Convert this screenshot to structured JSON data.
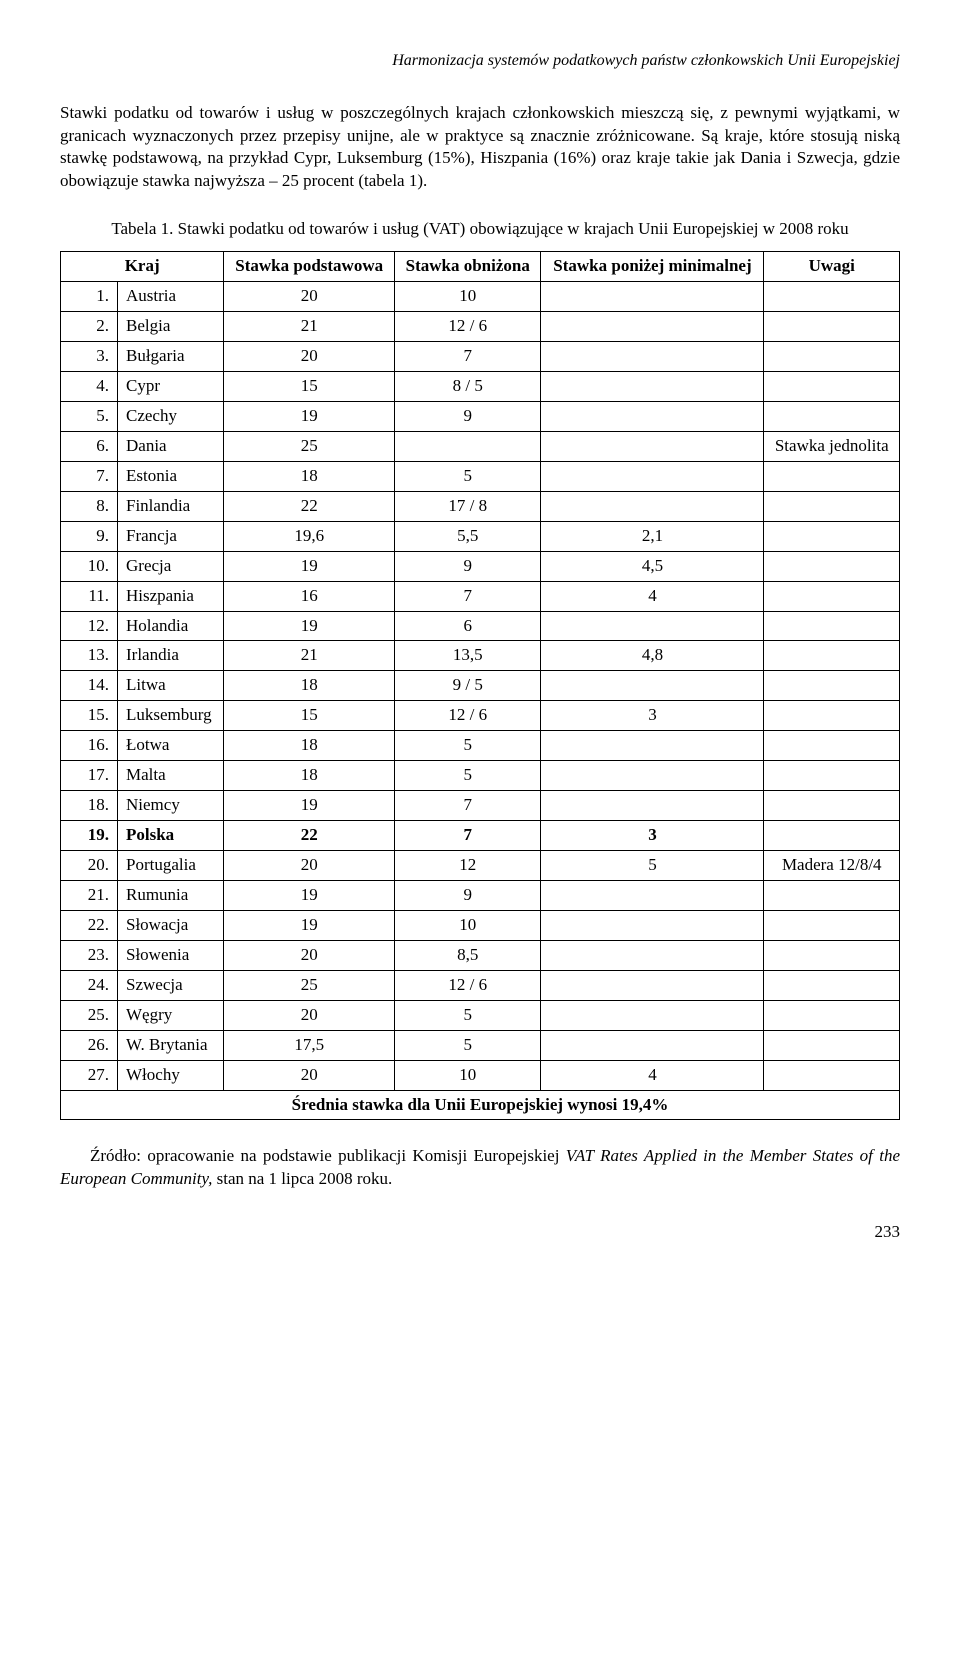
{
  "header": {
    "running_title": "Harmonizacja systemów podatkowych państw członkowskich Unii Europejskiej"
  },
  "paragraph": "Stawki podatku od towarów i usług w poszczególnych krajach członkowskich mieszczą się, z pewnymi wyjątkami, w granicach wyznaczonych przez przepisy unijne, ale w praktyce są znacznie zróżnicowane. Są kraje, które stosują niską stawkę podstawową, na przykład Cypr, Luksemburg (15%), Hiszpania (16%) oraz kraje takie jak Dania i Szwecja, gdzie obowiązuje stawka najwyższa – 25 procent (tabela 1).",
  "table": {
    "caption": "Tabela 1. Stawki podatku od towarów i usług (VAT) obowiązujące w krajach Unii Europejskiej w 2008 roku",
    "headers": {
      "country": "Kraj",
      "basic": "Stawka podstawowa",
      "reduced": "Stawka obniżona",
      "below_min": "Stawka poniżej minimalnej",
      "notes": "Uwagi"
    },
    "rows": [
      {
        "n": "1.",
        "country": "Austria",
        "basic": "20",
        "reduced": "10",
        "below": "",
        "notes": "",
        "bold": false
      },
      {
        "n": "2.",
        "country": "Belgia",
        "basic": "21",
        "reduced": "12 / 6",
        "below": "",
        "notes": "",
        "bold": false
      },
      {
        "n": "3.",
        "country": "Bułgaria",
        "basic": "20",
        "reduced": "7",
        "below": "",
        "notes": "",
        "bold": false
      },
      {
        "n": "4.",
        "country": "Cypr",
        "basic": "15",
        "reduced": "8 / 5",
        "below": "",
        "notes": "",
        "bold": false
      },
      {
        "n": "5.",
        "country": "Czechy",
        "basic": "19",
        "reduced": "9",
        "below": "",
        "notes": "",
        "bold": false
      },
      {
        "n": "6.",
        "country": "Dania",
        "basic": "25",
        "reduced": "",
        "below": "",
        "notes": "Stawka jednolita",
        "bold": false
      },
      {
        "n": "7.",
        "country": "Estonia",
        "basic": "18",
        "reduced": "5",
        "below": "",
        "notes": "",
        "bold": false
      },
      {
        "n": "8.",
        "country": "Finlandia",
        "basic": "22",
        "reduced": "17 / 8",
        "below": "",
        "notes": "",
        "bold": false
      },
      {
        "n": "9.",
        "country": "Francja",
        "basic": "19,6",
        "reduced": "5,5",
        "below": "2,1",
        "notes": "",
        "bold": false
      },
      {
        "n": "10.",
        "country": "Grecja",
        "basic": "19",
        "reduced": "9",
        "below": "4,5",
        "notes": "",
        "bold": false
      },
      {
        "n": "11.",
        "country": "Hiszpania",
        "basic": "16",
        "reduced": "7",
        "below": "4",
        "notes": "",
        "bold": false
      },
      {
        "n": "12.",
        "country": "Holandia",
        "basic": "19",
        "reduced": "6",
        "below": "",
        "notes": "",
        "bold": false
      },
      {
        "n": "13.",
        "country": "Irlandia",
        "basic": "21",
        "reduced": "13,5",
        "below": "4,8",
        "notes": "",
        "bold": false
      },
      {
        "n": "14.",
        "country": "Litwa",
        "basic": "18",
        "reduced": "9 / 5",
        "below": "",
        "notes": "",
        "bold": false
      },
      {
        "n": "15.",
        "country": "Luksemburg",
        "basic": "15",
        "reduced": "12 / 6",
        "below": "3",
        "notes": "",
        "bold": false
      },
      {
        "n": "16.",
        "country": "Łotwa",
        "basic": "18",
        "reduced": "5",
        "below": "",
        "notes": "",
        "bold": false
      },
      {
        "n": "17.",
        "country": "Malta",
        "basic": "18",
        "reduced": "5",
        "below": "",
        "notes": "",
        "bold": false
      },
      {
        "n": "18.",
        "country": "Niemcy",
        "basic": "19",
        "reduced": "7",
        "below": "",
        "notes": "",
        "bold": false
      },
      {
        "n": "19.",
        "country": "Polska",
        "basic": "22",
        "reduced": "7",
        "below": "3",
        "notes": "",
        "bold": true
      },
      {
        "n": "20.",
        "country": "Portugalia",
        "basic": "20",
        "reduced": "12",
        "below": "5",
        "notes": "Madera 12/8/4",
        "bold": false
      },
      {
        "n": "21.",
        "country": "Rumunia",
        "basic": "19",
        "reduced": "9",
        "below": "",
        "notes": "",
        "bold": false
      },
      {
        "n": "22.",
        "country": "Słowacja",
        "basic": "19",
        "reduced": "10",
        "below": "",
        "notes": "",
        "bold": false
      },
      {
        "n": "23.",
        "country": "Słowenia",
        "basic": "20",
        "reduced": "8,5",
        "below": "",
        "notes": "",
        "bold": false
      },
      {
        "n": "24.",
        "country": "Szwecja",
        "basic": "25",
        "reduced": "12 / 6",
        "below": "",
        "notes": "",
        "bold": false
      },
      {
        "n": "25.",
        "country": "Węgry",
        "basic": "20",
        "reduced": "5",
        "below": "",
        "notes": "",
        "bold": false
      },
      {
        "n": "26.",
        "country": "W. Brytania",
        "basic": "17,5",
        "reduced": "5",
        "below": "",
        "notes": "",
        "bold": false
      },
      {
        "n": "27.",
        "country": "Włochy",
        "basic": "20",
        "reduced": "10",
        "below": "4",
        "notes": "",
        "bold": false
      }
    ],
    "average": "Średnia stawka dla Unii Europejskiej wynosi 19,4%"
  },
  "source": {
    "prefix": "Źródło: opracowanie na podstawie publikacji Komisji Europejskiej ",
    "italic": "VAT Rates Applied in the Member States of the European Community,",
    "suffix": " stan na 1 lipca 2008 roku."
  },
  "page_number": "233"
}
